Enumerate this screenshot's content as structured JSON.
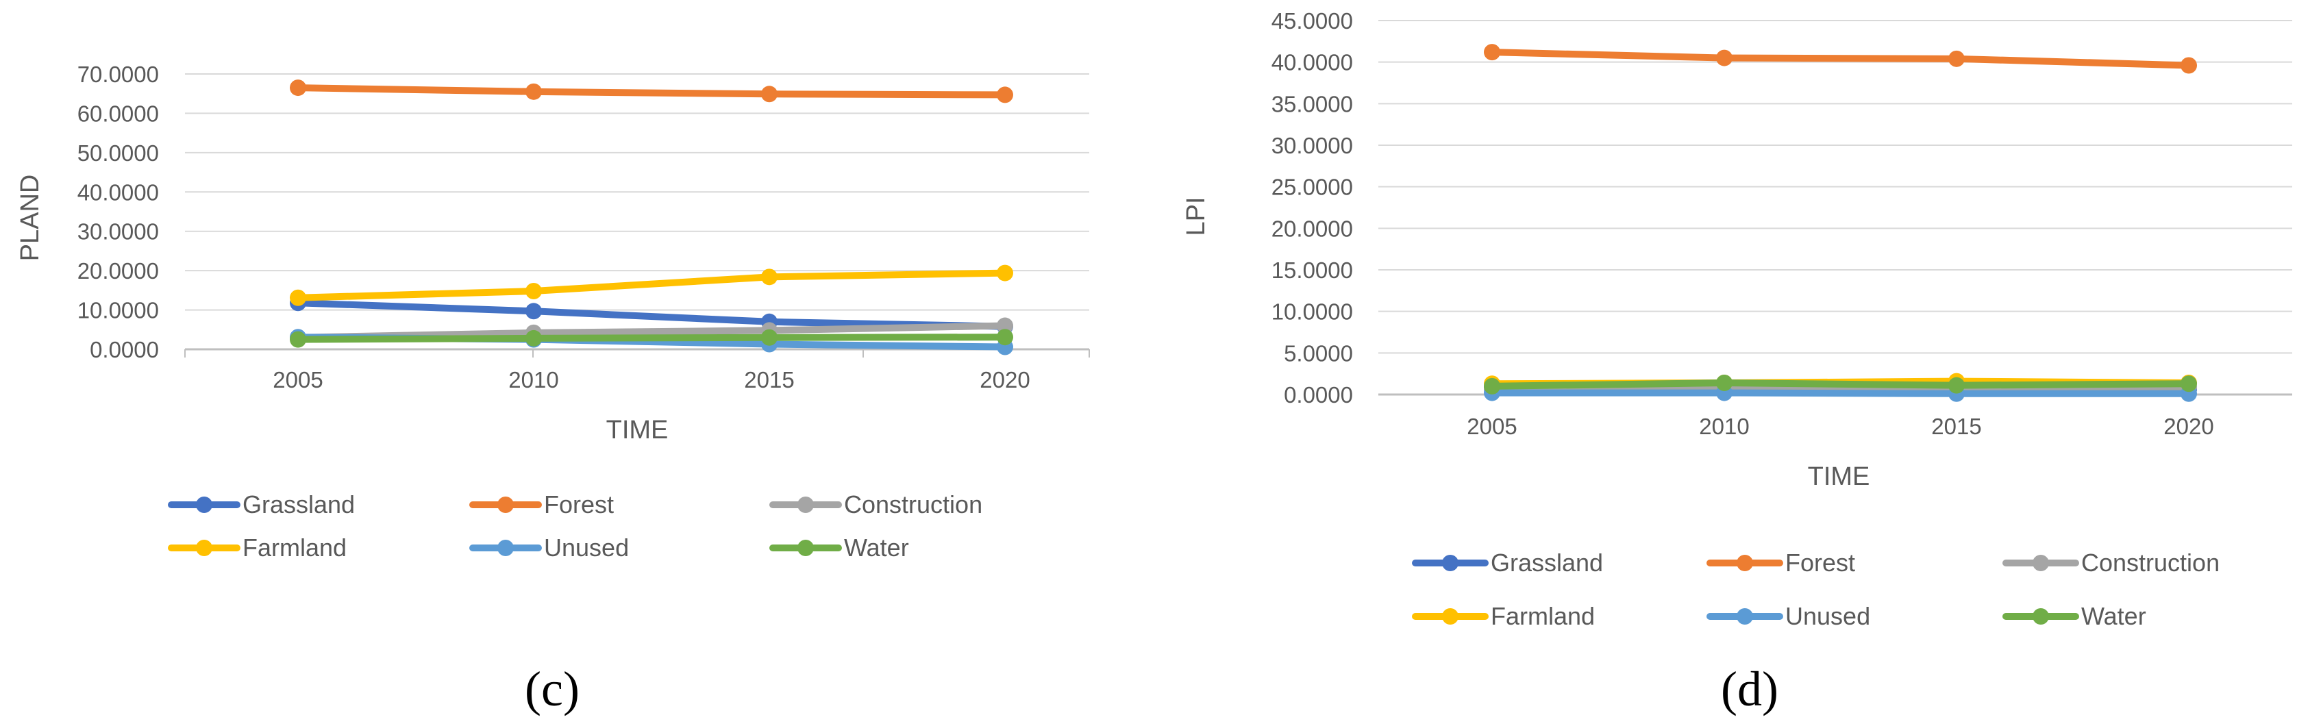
{
  "legend_items": [
    {
      "name": "Grassland",
      "color": "#4472C4"
    },
    {
      "name": "Forest",
      "color": "#ED7D31"
    },
    {
      "name": "Construction",
      "color": "#A5A5A5"
    },
    {
      "name": "Farmland",
      "color": "#FFC000"
    },
    {
      "name": "Unused",
      "color": "#5B9BD5"
    },
    {
      "name": "Water",
      "color": "#70AD47"
    }
  ],
  "chart_data": [
    {
      "type": "line",
      "panel_label": "(c)",
      "xlabel": "TIME",
      "ylabel": "PLAND",
      "categories": [
        "2005",
        "2010",
        "2015",
        "2020"
      ],
      "ylim": [
        0,
        70
      ],
      "yticks": [
        "0.0000",
        "10.0000",
        "20.0000",
        "30.0000",
        "40.0000",
        "50.0000",
        "60.0000",
        "70.0000"
      ],
      "series": [
        {
          "name": "Grassland",
          "values": [
            11.8,
            9.7,
            7.0,
            5.8
          ]
        },
        {
          "name": "Forest",
          "values": [
            66.5,
            65.5,
            64.9,
            64.7
          ]
        },
        {
          "name": "Construction",
          "values": [
            3.0,
            4.2,
            4.8,
            6.0
          ]
        },
        {
          "name": "Farmland",
          "values": [
            13.1,
            14.8,
            18.4,
            19.4
          ]
        },
        {
          "name": "Unused",
          "values": [
            3.1,
            2.5,
            1.3,
            0.6
          ]
        },
        {
          "name": "Water",
          "values": [
            2.5,
            2.8,
            3.0,
            3.1
          ]
        }
      ],
      "legend": "bottom"
    },
    {
      "type": "line",
      "panel_label": "(d)",
      "xlabel": "TIME",
      "ylabel": "LPI",
      "categories": [
        "2005",
        "2010",
        "2015",
        "2020"
      ],
      "ylim": [
        0,
        45
      ],
      "yticks": [
        "0.0000",
        "5.0000",
        "10.0000",
        "15.0000",
        "20.0000",
        "25.0000",
        "30.0000",
        "35.0000",
        "40.0000",
        "45.0000"
      ],
      "series": [
        {
          "name": "Grassland",
          "values": [
            0.9,
            0.8,
            0.7,
            0.6
          ]
        },
        {
          "name": "Forest",
          "values": [
            41.2,
            40.5,
            40.4,
            39.6
          ]
        },
        {
          "name": "Construction",
          "values": [
            0.6,
            0.7,
            0.8,
            0.9
          ]
        },
        {
          "name": "Farmland",
          "values": [
            1.3,
            1.4,
            1.6,
            1.4
          ]
        },
        {
          "name": "Unused",
          "values": [
            0.2,
            0.2,
            0.1,
            0.1
          ]
        },
        {
          "name": "Water",
          "values": [
            1.0,
            1.4,
            1.1,
            1.3
          ]
        }
      ],
      "legend": "bottom"
    }
  ]
}
